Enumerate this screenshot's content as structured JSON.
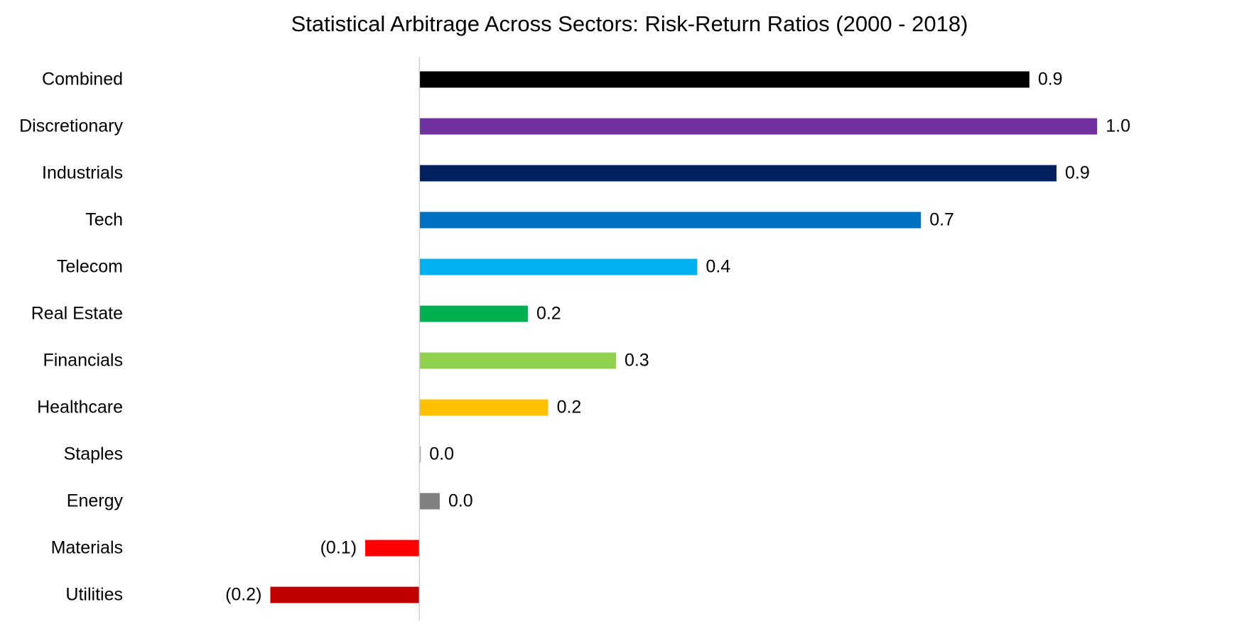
{
  "chart_data": {
    "type": "hbar",
    "title": "Statistical Arbitrage Across Sectors: Risk-Return Ratios (2000 - 2018)",
    "categories": [
      "Combined",
      "Discretionary",
      "Industrials",
      "Tech",
      "Telecom",
      "Real Estate",
      "Financials",
      "Healthcare",
      "Staples",
      "Energy",
      "Materials",
      "Utilities"
    ],
    "values": [
      0.9,
      1.0,
      0.94,
      0.74,
      0.41,
      0.16,
      0.29,
      0.19,
      0.002,
      0.03,
      -0.08,
      -0.22
    ],
    "value_labels": [
      "0.9",
      "1.0",
      "0.9",
      "0.7",
      "0.4",
      "0.2",
      "0.3",
      "0.2",
      "0.0",
      "0.0",
      "(0.1)",
      "(0.2)"
    ],
    "colors": [
      "#000000",
      "#7030a0",
      "#002060",
      "#0070c0",
      "#00b0f0",
      "#00b050",
      "#92d050",
      "#ffc000",
      "#8eaadb",
      "#808080",
      "#ff0000",
      "#c00000"
    ],
    "xlim": [
      -0.6,
      1.2
    ]
  }
}
